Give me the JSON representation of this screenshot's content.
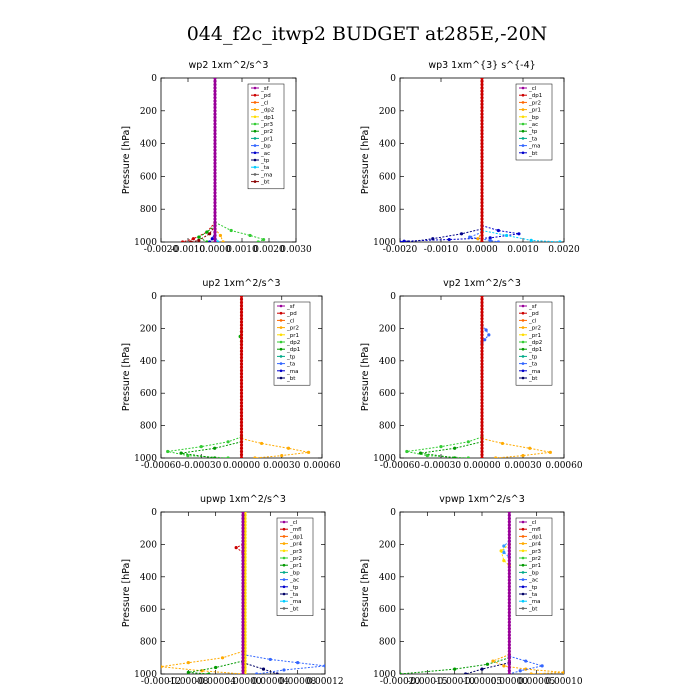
{
  "title": "044_f2c_itwp2  BUDGET at285E,-20N",
  "chart_data": [
    {
      "type": "line",
      "title": "wp2   1xm^2/s^3",
      "ylabel": "Pressure [hPa]",
      "xlim": [
        -0.002,
        0.003
      ],
      "ylim": [
        1000,
        0
      ],
      "xticks": [
        "-0.0020",
        "-0.0010",
        "0.0000",
        "0.0010",
        "0.0020",
        "0.0030"
      ],
      "xtick_values": [
        -0.002,
        -0.001,
        0,
        0.001,
        0.002,
        0.003
      ],
      "yticks": [
        "0",
        "200",
        "400",
        "600",
        "800",
        "1000"
      ],
      "ytick_values": [
        0,
        200,
        400,
        600,
        800,
        1000
      ],
      "legend": [
        "_sf",
        "_pd",
        "_cl",
        "_dp2",
        "_dp1",
        "_pr3",
        "_pr2",
        "_pr1",
        "_bp",
        "_ac",
        "_tp",
        "_ta",
        "_ma",
        "_bt"
      ],
      "series": [
        {
          "name": "_dp1",
          "color": "#cc0000",
          "points": [
            [
              0,
              880
            ],
            [
              -0.0003,
              940
            ],
            [
              -0.0008,
              980
            ],
            [
              -0.0012,
              1000
            ]
          ]
        },
        {
          "name": "_dp2",
          "color": "#880000",
          "points": [
            [
              0,
              900
            ],
            [
              -0.0002,
              950
            ],
            [
              -0.0006,
              990
            ],
            [
              -0.0009,
              1000
            ]
          ]
        },
        {
          "name": "_pr1",
          "color": "#33cc33",
          "points": [
            [
              0,
              880
            ],
            [
              0.0006,
              930
            ],
            [
              0.0013,
              960
            ],
            [
              0.0018,
              985
            ],
            [
              0.0016,
              1000
            ]
          ]
        },
        {
          "name": "_ac",
          "color": "#00aa00",
          "points": [
            [
              0,
              900
            ],
            [
              -0.0003,
              940
            ],
            [
              -0.0006,
              970
            ],
            [
              -0.0003,
              1000
            ]
          ]
        },
        {
          "name": "_pr2",
          "color": "#ffaa00",
          "points": [
            [
              0,
              920
            ],
            [
              0.0002,
              960
            ],
            [
              0.0003,
              1000
            ]
          ]
        },
        {
          "name": "_tp",
          "color": "#0000cc",
          "points": [
            [
              0,
              940
            ],
            [
              -0.0001,
              980
            ],
            [
              -0.0002,
              1000
            ]
          ]
        },
        {
          "name": "_bt",
          "color": "#00ccff",
          "points": [
            [
              0,
              960
            ],
            [
              0.0001,
              1000
            ]
          ]
        },
        {
          "name": "_pd",
          "color": "#990099",
          "points": [
            [
              0,
              0
            ],
            [
              0,
              1000
            ]
          ]
        }
      ]
    },
    {
      "type": "line",
      "title": "wp3   1xm^{3} s^{-4}",
      "ylabel": "Pressure [hPa]",
      "xlim": [
        -0.002,
        0.002
      ],
      "ylim": [
        1000,
        0
      ],
      "xticks": [
        "-0.0020",
        "-0.0010",
        "0.0000",
        "0.0010",
        "0.0020"
      ],
      "xtick_values": [
        -0.002,
        -0.001,
        0,
        0.001,
        0.002
      ],
      "yticks": [
        "0",
        "200",
        "400",
        "600",
        "800",
        "1000"
      ],
      "ytick_values": [
        0,
        200,
        400,
        600,
        800,
        1000
      ],
      "legend": [
        "_cl",
        "_dp1",
        "_pr2",
        "_pr1",
        "_bp",
        "_ac",
        "_tp",
        "_ta",
        "_ma",
        "_bt"
      ],
      "series": [
        {
          "name": "_tp",
          "color": "#0000cc",
          "points": [
            [
              0,
              900
            ],
            [
              0.0004,
              930
            ],
            [
              0.0009,
              950
            ],
            [
              0.0002,
              975
            ],
            [
              -0.0008,
              985
            ],
            [
              -0.0019,
              995
            ],
            [
              -0.002,
              1000
            ]
          ]
        },
        {
          "name": "_ta",
          "color": "#000088",
          "points": [
            [
              0,
              920
            ],
            [
              -0.0005,
              950
            ],
            [
              -0.0012,
              980
            ],
            [
              -0.0018,
              1000
            ]
          ]
        },
        {
          "name": "_bt",
          "color": "#00ccff",
          "points": [
            [
              0,
              930
            ],
            [
              0.0006,
              960
            ],
            [
              0.0012,
              990
            ],
            [
              0.0019,
              1000
            ]
          ]
        },
        {
          "name": "_ma",
          "color": "#3366ff",
          "points": [
            [
              0,
              940
            ],
            [
              -0.0003,
              970
            ],
            [
              0.0002,
              990
            ],
            [
              0.0004,
              1000
            ]
          ]
        },
        {
          "name": "_pr2",
          "color": "#ffaa00",
          "points": [
            [
              0,
              940
            ],
            [
              -0.0001,
              980
            ],
            [
              0,
              1000
            ]
          ]
        },
        {
          "name": "_cl",
          "color": "#cc0000",
          "points": [
            [
              0,
              0
            ],
            [
              0,
              1000
            ]
          ]
        }
      ]
    },
    {
      "type": "line",
      "title": "up2   1xm^2/s^3",
      "ylabel": "Pressure [hPa]",
      "xlim": [
        -0.0006,
        0.0006
      ],
      "ylim": [
        1000,
        0
      ],
      "xticks": [
        "-0.00060",
        "-0.00030",
        "0.00000",
        "0.00030",
        "0.00060"
      ],
      "xtick_values": [
        -0.0006,
        -0.0003,
        0,
        0.0003,
        0.0006
      ],
      "yticks": [
        "0",
        "200",
        "400",
        "600",
        "800",
        "1000"
      ],
      "ytick_values": [
        0,
        200,
        400,
        600,
        800,
        1000
      ],
      "legend": [
        "_sf",
        "_pd",
        "_cl",
        "_pr2",
        "_pr1",
        "_dp2",
        "_dp1",
        "_tp",
        "_ta",
        "_ma",
        "_bt"
      ],
      "series": [
        {
          "name": "_pr1",
          "color": "#33cc33",
          "points": [
            [
              0,
              870
            ],
            [
              -0.0001,
              900
            ],
            [
              -0.0003,
              930
            ],
            [
              -0.00055,
              960
            ],
            [
              -0.0004,
              985
            ],
            [
              -0.0001,
              1000
            ]
          ]
        },
        {
          "name": "_dp2",
          "color": "#009900",
          "points": [
            [
              0,
              900
            ],
            [
              -0.0002,
              940
            ],
            [
              -0.00045,
              970
            ],
            [
              -0.0002,
              1000
            ]
          ]
        },
        {
          "name": "_pr2",
          "color": "#ffaa00",
          "points": [
            [
              0,
              880
            ],
            [
              0.00015,
              910
            ],
            [
              0.00035,
              940
            ],
            [
              0.0005,
              965
            ],
            [
              0.0003,
              985
            ],
            [
              0.0001,
              1000
            ]
          ]
        },
        {
          "name": "_dp1",
          "color": "#00aa00",
          "points": [
            [
              0,
              220
            ],
            [
              -1e-05,
              250
            ],
            [
              0,
              280
            ]
          ]
        },
        {
          "name": "_cl",
          "color": "#cc0000",
          "points": [
            [
              0,
              0
            ],
            [
              0,
              1000
            ]
          ]
        }
      ]
    },
    {
      "type": "line",
      "title": "vp2   1xm^2/s^3",
      "ylabel": "Pressure [hPa]",
      "xlim": [
        -0.0006,
        0.0006
      ],
      "ylim": [
        1000,
        0
      ],
      "xticks": [
        "-0.00060",
        "-0.00030",
        "0.00000",
        "0.00030",
        "0.00060"
      ],
      "xtick_values": [
        -0.0006,
        -0.0003,
        0,
        0.0003,
        0.0006
      ],
      "yticks": [
        "0",
        "200",
        "400",
        "600",
        "800",
        "1000"
      ],
      "ytick_values": [
        0,
        200,
        400,
        600,
        800,
        1000
      ],
      "legend": [
        "_sf",
        "_pd",
        "_cl",
        "_pr2",
        "_pr1",
        "_dp2",
        "_dp1",
        "_tp",
        "_ta",
        "_ma",
        "_bt"
      ],
      "series": [
        {
          "name": "_pr1",
          "color": "#33cc33",
          "points": [
            [
              0,
              870
            ],
            [
              -0.0001,
              900
            ],
            [
              -0.0003,
              930
            ],
            [
              -0.00055,
              960
            ],
            [
              -0.0004,
              985
            ],
            [
              -0.0001,
              1000
            ]
          ]
        },
        {
          "name": "_dp2",
          "color": "#009900",
          "points": [
            [
              0,
              900
            ],
            [
              -0.0002,
              940
            ],
            [
              -0.00045,
              970
            ],
            [
              -0.0002,
              1000
            ]
          ]
        },
        {
          "name": "_pr2",
          "color": "#ffaa00",
          "points": [
            [
              0,
              880
            ],
            [
              0.00015,
              910
            ],
            [
              0.00035,
              940
            ],
            [
              0.0005,
              965
            ],
            [
              0.0003,
              985
            ],
            [
              0.0001,
              1000
            ]
          ]
        },
        {
          "name": "_tp",
          "color": "#3366ff",
          "points": [
            [
              0,
              180
            ],
            [
              3e-05,
              210
            ],
            [
              5e-05,
              240
            ],
            [
              2e-05,
              270
            ],
            [
              0,
              290
            ]
          ]
        },
        {
          "name": "_cl",
          "color": "#cc0000",
          "points": [
            [
              0,
              0
            ],
            [
              0,
              1000
            ]
          ]
        }
      ]
    },
    {
      "type": "line",
      "title": "upwp   1xm^2/s^3",
      "ylabel": "Pressure [hPa]",
      "xlim": [
        -0.00012,
        0.00012
      ],
      "ylim": [
        1000,
        0
      ],
      "xticks": [
        "-0.00012",
        "-0.00008",
        "-0.00004",
        "0.00000",
        "0.00004",
        "0.00008",
        "0.00012"
      ],
      "xtick_values": [
        -0.00012,
        -8e-05,
        -4e-05,
        0,
        4e-05,
        8e-05,
        0.00012
      ],
      "yticks": [
        "0",
        "200",
        "400",
        "600",
        "800",
        "1000"
      ],
      "ytick_values": [
        0,
        200,
        400,
        600,
        800,
        1000
      ],
      "legend": [
        "_cl",
        "_mfl",
        "_dp1",
        "_pr4",
        "_pr3",
        "_pr2",
        "_pr1",
        "_bp",
        "_ac",
        "_tp",
        "_ta",
        "_ma",
        "_bt"
      ],
      "series": [
        {
          "name": "_pr2",
          "color": "#ffaa00",
          "points": [
            [
              0,
              860
            ],
            [
              -3e-05,
              900
            ],
            [
              -8e-05,
              930
            ],
            [
              -0.00012,
              955
            ],
            [
              -6e-05,
              980
            ],
            [
              0,
              1000
            ]
          ]
        },
        {
          "name": "_tp",
          "color": "#3366ff",
          "points": [
            [
              0,
              880
            ],
            [
              4e-05,
              910
            ],
            [
              8e-05,
              930
            ],
            [
              0.00012,
              950
            ],
            [
              6e-05,
              975
            ],
            [
              2e-05,
              1000
            ]
          ]
        },
        {
          "name": "_ac",
          "color": "#009900",
          "points": [
            [
              0,
              920
            ],
            [
              -4e-05,
              960
            ],
            [
              -8e-05,
              990
            ],
            [
              -5e-05,
              1000
            ]
          ]
        },
        {
          "name": "_ta",
          "color": "#000066",
          "points": [
            [
              0,
              930
            ],
            [
              3e-05,
              970
            ],
            [
              5e-05,
              1000
            ]
          ]
        },
        {
          "name": "_dp1",
          "color": "#cc0000",
          "points": [
            [
              0,
              200
            ],
            [
              -1e-05,
              220
            ],
            [
              0,
              250
            ]
          ]
        },
        {
          "name": "_pr1",
          "color": "#ffdd00",
          "points": [
            [
              3e-06,
              0
            ],
            [
              3e-06,
              1000
            ]
          ]
        },
        {
          "name": "_cl",
          "color": "#990099",
          "points": [
            [
              0,
              0
            ],
            [
              0,
              1000
            ]
          ]
        }
      ]
    },
    {
      "type": "line",
      "title": "vpwp   1xm^2/s^3",
      "ylabel": "Pressure [hPa]",
      "xlim": [
        -0.0002,
        0.0001
      ],
      "ylim": [
        1000,
        0
      ],
      "xticks": [
        "-0.00020",
        "-0.00015",
        "-0.00010",
        "-0.00005",
        "0.00000",
        "0.00005",
        "0.00010"
      ],
      "xtick_values": [
        -0.0002,
        -0.00015,
        -0.0001,
        -5e-05,
        0,
        5e-05,
        0.0001
      ],
      "yticks": [
        "0",
        "200",
        "400",
        "600",
        "800",
        "1000"
      ],
      "ytick_values": [
        0,
        200,
        400,
        600,
        800,
        1000
      ],
      "legend": [
        "_cl",
        "_mfl",
        "_dp1",
        "_pr4",
        "_pr3",
        "_pr2",
        "_pr1",
        "_bp",
        "_ac",
        "_tp",
        "_ta",
        "_ma",
        "_bt"
      ],
      "series": [
        {
          "name": "_ac",
          "color": "#009900",
          "points": [
            [
              0,
              900
            ],
            [
              -4e-05,
              940
            ],
            [
              -0.0001,
              970
            ],
            [
              -0.0002,
              1000
            ]
          ]
        },
        {
          "name": "_pr2",
          "color": "#ffaa00",
          "points": [
            [
              0,
              880
            ],
            [
              -3e-05,
              920
            ],
            [
              -1e-05,
              950
            ],
            [
              3e-05,
              970
            ],
            [
              0.0001,
              990
            ],
            [
              4e-05,
              1000
            ]
          ]
        },
        {
          "name": "_tp",
          "color": "#3366ff",
          "points": [
            [
              0,
              890
            ],
            [
              3e-05,
              920
            ],
            [
              6e-05,
              950
            ],
            [
              2e-05,
              980
            ],
            [
              0,
              1000
            ]
          ]
        },
        {
          "name": "_ta",
          "color": "#000066",
          "points": [
            [
              0,
              930
            ],
            [
              -5e-05,
              970
            ],
            [
              -8e-05,
              1000
            ]
          ]
        },
        {
          "name": "_bp",
          "color": "#3399ff",
          "points": [
            [
              0,
              180
            ],
            [
              -1e-05,
              210
            ],
            [
              -1e-05,
              250
            ],
            [
              0,
              280
            ]
          ]
        },
        {
          "name": "_pr1",
          "color": "#ffdd00",
          "points": [
            [
              0,
              200
            ],
            [
              -1.5e-05,
              240
            ],
            [
              -1e-05,
              300
            ],
            [
              0,
              330
            ]
          ]
        },
        {
          "name": "_cl",
          "color": "#990099",
          "points": [
            [
              0,
              0
            ],
            [
              0,
              1000
            ]
          ]
        }
      ]
    }
  ]
}
